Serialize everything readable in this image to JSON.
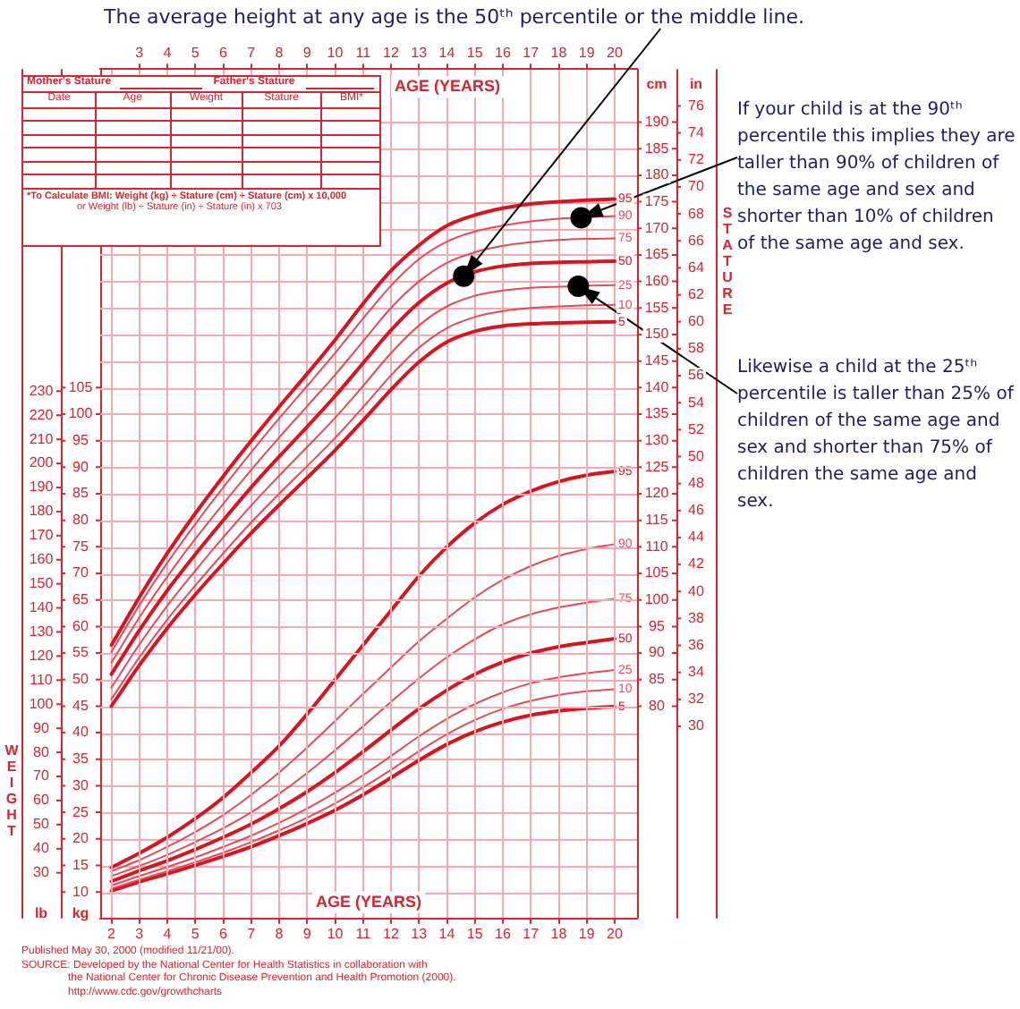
{
  "chart_data": [
    {
      "type": "line",
      "xlabel": "AGE (YEARS)",
      "x2label": "AGE (YEARS)",
      "xlim": [
        1.6,
        20.8
      ],
      "xticks": [
        2,
        3,
        4,
        5,
        6,
        7,
        8,
        9,
        10,
        11,
        12,
        13,
        14,
        15,
        16,
        17,
        18,
        19,
        20
      ],
      "x2lim": [
        1.6,
        20.8
      ],
      "x2ticks": [
        3,
        4,
        5,
        6,
        7,
        8,
        9,
        10,
        11,
        12,
        13,
        14,
        15,
        16,
        17,
        18,
        19,
        20
      ],
      "ylabel": "cm",
      "ylim": [
        40,
        200
      ],
      "yticks": [
        80,
        85,
        90,
        95,
        100,
        105,
        110,
        115,
        120,
        125,
        130,
        135,
        140,
        145,
        150,
        155,
        160,
        165,
        170,
        175,
        180,
        185,
        190
      ],
      "y2label": "in",
      "y2lim": [
        15.75,
        78.74
      ],
      "y2ticks": [
        30,
        32,
        34,
        36,
        38,
        40,
        42,
        44,
        46,
        48,
        50,
        52,
        54,
        56,
        58,
        60,
        62,
        64,
        66,
        68,
        70,
        72,
        74,
        76
      ],
      "grid": true,
      "x": [
        2,
        3,
        4,
        5,
        6,
        7,
        8,
        9,
        10,
        11,
        12,
        13,
        14,
        15,
        16,
        17,
        18,
        19,
        20
      ],
      "series": [
        {
          "name": "95",
          "color": "#d7141f",
          "values": [
            91.5,
            100.5,
            108.8,
            116.3,
            123.3,
            130.0,
            136.4,
            142.6,
            149.0,
            155.8,
            162.0,
            166.8,
            170.5,
            172.5,
            173.8,
            174.6,
            175.0,
            175.3,
            175.5
          ]
        },
        {
          "name": "90",
          "color": "#e64a56",
          "values": [
            90.2,
            99.0,
            107.0,
            114.3,
            121.2,
            127.8,
            134.2,
            140.3,
            146.5,
            153.0,
            159.2,
            164.2,
            167.5,
            169.4,
            170.5,
            171.3,
            171.8,
            172.1,
            172.3
          ]
        },
        {
          "name": "75",
          "color": "#e64a56",
          "values": [
            88.2,
            96.7,
            104.4,
            111.5,
            118.1,
            124.5,
            130.6,
            136.5,
            142.4,
            148.7,
            155.0,
            160.0,
            163.5,
            165.5,
            166.7,
            167.4,
            167.8,
            168.0,
            168.1
          ]
        },
        {
          "name": "50",
          "color": "#d7141f",
          "values": [
            86.0,
            94.3,
            101.8,
            108.6,
            115.0,
            121.2,
            127.0,
            132.6,
            138.4,
            144.6,
            150.8,
            156.0,
            159.7,
            161.8,
            162.9,
            163.4,
            163.6,
            163.7,
            163.8
          ]
        },
        {
          "name": "25",
          "color": "#e64a56",
          "values": [
            83.5,
            91.6,
            98.9,
            105.5,
            111.8,
            117.8,
            123.4,
            128.8,
            134.3,
            140.3,
            146.5,
            151.7,
            155.3,
            157.3,
            158.3,
            158.8,
            159.0,
            159.2,
            159.3
          ]
        },
        {
          "name": "10",
          "color": "#e64a56",
          "values": [
            81.3,
            89.2,
            96.3,
            102.7,
            108.8,
            114.6,
            120.0,
            125.2,
            130.5,
            136.3,
            142.3,
            147.5,
            151.2,
            153.3,
            154.4,
            155.0,
            155.3,
            155.5,
            155.6
          ]
        },
        {
          "name": "5",
          "color": "#d7141f",
          "values": [
            80.0,
            87.7,
            94.7,
            101.0,
            106.9,
            112.6,
            117.9,
            123.0,
            128.2,
            133.8,
            139.6,
            144.8,
            148.6,
            150.6,
            151.6,
            152.0,
            152.2,
            152.3,
            152.4
          ]
        },
        {
          "type": "scatter",
          "color": "#000000",
          "marker": "circle",
          "x": [
            14.6,
            18.8,
            18.7
          ],
          "values": [
            161.0,
            172.0,
            159.1
          ]
        }
      ],
      "annotations": [
        {
          "text": "The average height at any age is the 50ᵗʰ percentile or the middle line.",
          "x": 14.6,
          "y": 161.0
        },
        {
          "text": "If your child is at the 90ᵗʰ percentile this implies they are taller than 90% of children of the same age and sex and shorter than 10% of children of the same age and sex.",
          "x": 18.8,
          "y": 172.0
        },
        {
          "text": "Likewise a child at the 25ᵗʰ percentile is taller than 25% of children of the same age and sex and shorter than 75% of children the same age and sex.",
          "x": 18.7,
          "y": 159.1
        },
        "Mother's Stature",
        "Father's Stature",
        "Date",
        "Age",
        "Weight",
        "Stature",
        "BMI*",
        "*To Calculate BMI: Weight (kg) ÷ Stature (cm) ÷ Stature (cm) x 10,000",
        "or Weight (lb) ÷ Stature (in) ÷ Stature (in) x 703",
        "Published May 30, 2000 (modified 11/21/00).",
        "SOURCE: Developed by the National Center for Health Statistics in collaboration with",
        "the National Center for Chronic Disease Prevention and Health Promotion (2000).",
        "http://www.cdc.gov/growthcharts",
        "STATURE"
      ]
    },
    {
      "type": "line",
      "xlim": [
        1.6,
        20.8
      ],
      "tick_labels": "y",
      "ylabel": "kg",
      "ylim": [
        5,
        165
      ],
      "yticks": [
        10,
        15,
        20,
        25,
        30,
        35,
        40,
        45,
        50,
        55,
        60,
        65,
        70,
        75,
        80,
        85,
        90,
        95,
        100,
        105
      ],
      "y2label": "lb",
      "y2lim": [
        11.02,
        363.76
      ],
      "y2ticks": [
        30,
        40,
        50,
        60,
        70,
        80,
        90,
        100,
        110,
        120,
        130,
        140,
        150,
        160,
        170,
        180,
        190,
        200,
        210,
        220,
        230
      ],
      "grid": "y",
      "x": [
        2,
        3,
        4,
        5,
        6,
        7,
        8,
        9,
        10,
        11,
        12,
        13,
        14,
        15,
        16,
        17,
        18,
        19,
        20
      ],
      "series": [
        {
          "name": "95",
          "color": "#d7141f",
          "values": [
            14.6,
            17.3,
            20.3,
            23.8,
            27.8,
            32.5,
            37.5,
            43.5,
            50.0,
            56.5,
            63.0,
            69.5,
            75.0,
            79.5,
            83.0,
            85.5,
            87.3,
            88.5,
            89.2
          ]
        },
        {
          "name": "90",
          "color": "#e64a56",
          "values": [
            13.9,
            16.0,
            18.5,
            21.3,
            24.5,
            28.3,
            32.5,
            37.2,
            42.2,
            47.3,
            52.3,
            57.2,
            61.5,
            65.5,
            68.8,
            71.4,
            73.3,
            74.6,
            75.5
          ]
        },
        {
          "name": "75",
          "color": "#e64a56",
          "values": [
            13.0,
            14.9,
            17.0,
            19.4,
            22.0,
            25.0,
            28.5,
            32.4,
            36.7,
            41.2,
            45.8,
            50.2,
            54.2,
            57.6,
            60.4,
            62.3,
            63.6,
            64.5,
            65.2
          ]
        },
        {
          "name": "50",
          "color": "#d7141f",
          "values": [
            12.0,
            14.0,
            15.9,
            18.0,
            20.3,
            22.8,
            25.7,
            28.9,
            32.5,
            36.4,
            40.5,
            44.5,
            48.0,
            51.0,
            53.3,
            55.0,
            56.2,
            57.0,
            57.7
          ]
        },
        {
          "name": "25",
          "color": "#e64a56",
          "values": [
            11.2,
            13.0,
            14.7,
            16.5,
            18.5,
            20.6,
            23.0,
            25.7,
            28.7,
            32.0,
            35.6,
            39.3,
            42.6,
            45.4,
            47.6,
            49.3,
            50.4,
            51.2,
            51.8
          ]
        },
        {
          "name": "10",
          "color": "#e64a56",
          "values": [
            10.6,
            12.3,
            13.9,
            15.6,
            17.4,
            19.4,
            21.6,
            24.0,
            26.7,
            29.7,
            33.0,
            36.5,
            39.7,
            42.4,
            44.5,
            46.0,
            47.1,
            47.8,
            48.2
          ]
        },
        {
          "name": "5",
          "color": "#d7141f",
          "values": [
            10.2,
            11.9,
            13.4,
            15.0,
            16.7,
            18.5,
            20.6,
            22.9,
            25.4,
            28.3,
            31.5,
            34.8,
            37.8,
            40.2,
            42.0,
            43.3,
            44.1,
            44.6,
            44.9
          ]
        }
      ],
      "annotations": [
        "WEIGHT"
      ]
    }
  ]
}
